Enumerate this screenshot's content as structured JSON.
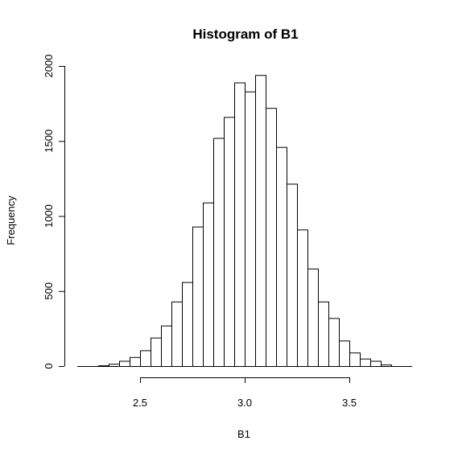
{
  "chart_data": {
    "type": "bar",
    "title": "Histogram of B1",
    "xlabel": "B1",
    "ylabel": "Frequency",
    "bin_edges": [
      2.3,
      2.35,
      2.4,
      2.45,
      2.5,
      2.55,
      2.6,
      2.65,
      2.7,
      2.75,
      2.8,
      2.85,
      2.9,
      2.95,
      3.0,
      3.05,
      3.1,
      3.15,
      3.2,
      3.25,
      3.3,
      3.35,
      3.4,
      3.45,
      3.5,
      3.55,
      3.6,
      3.65,
      3.7
    ],
    "bin_width": 0.05,
    "counts": [
      5,
      15,
      35,
      60,
      105,
      190,
      270,
      430,
      560,
      930,
      1090,
      1520,
      1660,
      1890,
      1830,
      1940,
      1720,
      1460,
      1215,
      910,
      650,
      430,
      320,
      170,
      90,
      50,
      35,
      10,
      5
    ],
    "x_ticks": [
      2.5,
      3.0,
      3.5
    ],
    "x_tick_labels": [
      "2.5",
      "3.0",
      "3.5"
    ],
    "y_ticks": [
      0,
      500,
      1000,
      1500,
      2000
    ],
    "y_tick_labels": [
      "0",
      "500",
      "1000",
      "1500",
      "2000"
    ],
    "xlim": [
      2.2,
      3.8
    ],
    "ylim": [
      0,
      2000
    ],
    "grid": false,
    "legend": "none"
  }
}
